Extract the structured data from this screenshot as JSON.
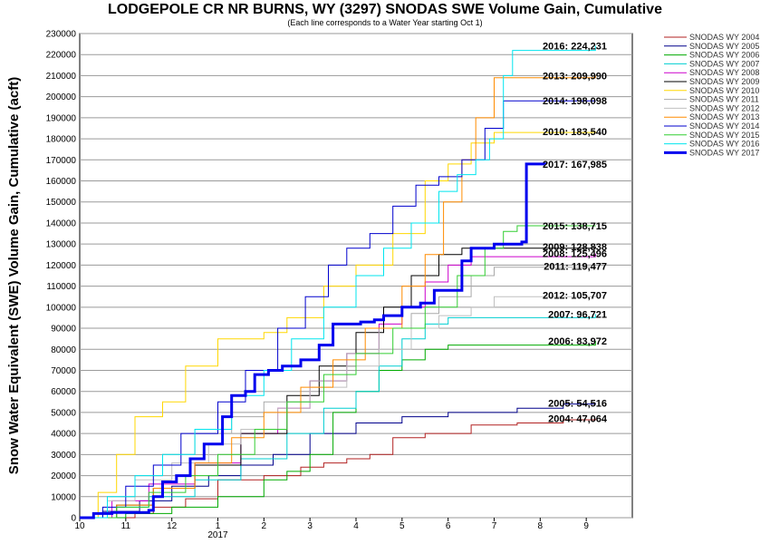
{
  "chart_data": {
    "type": "line",
    "title": "LODGEPOLE CR NR BURNS, WY (3297) SNODAS SWE Volume Gain, Cumulative",
    "subtitle": "(Each line corresponds to a Water Year starting Oct 1)",
    "ylabel": "Snow Water Equivalent (SWE) Volume Gain, Cumulative (acft)",
    "xlabel": "",
    "x_ticks": [
      "10",
      "11",
      "12",
      "1",
      "2",
      "3",
      "4",
      "5",
      "6",
      "7",
      "8",
      "9"
    ],
    "x_year_label": "2017",
    "xlim": [
      0,
      12
    ],
    "ylim": [
      0,
      230000
    ],
    "y_ticks": [
      0,
      10000,
      20000,
      30000,
      40000,
      50000,
      60000,
      70000,
      80000,
      90000,
      100000,
      110000,
      120000,
      130000,
      140000,
      150000,
      160000,
      170000,
      180000,
      190000,
      200000,
      210000,
      220000,
      230000
    ],
    "grid": true,
    "legend_position": "right",
    "series": [
      {
        "name": "SNODAS WY 2004",
        "color": "#b22222",
        "width": 1,
        "end_label": "2004: 47,064",
        "points": [
          [
            0,
            0
          ],
          [
            0.5,
            0
          ],
          [
            1.2,
            2000
          ],
          [
            1.6,
            5000
          ],
          [
            2.3,
            9000
          ],
          [
            3.0,
            18000
          ],
          [
            4.0,
            20000
          ],
          [
            4.8,
            24000
          ],
          [
            5.3,
            26000
          ],
          [
            5.8,
            28000
          ],
          [
            6.3,
            30000
          ],
          [
            6.8,
            38000
          ],
          [
            7.5,
            40000
          ],
          [
            8.5,
            44000
          ],
          [
            9.5,
            45000
          ],
          [
            10.5,
            46500
          ],
          [
            11.2,
            47064
          ]
        ]
      },
      {
        "name": "SNODAS WY 2005",
        "color": "#00008b",
        "width": 1,
        "end_label": "2005: 54,516",
        "points": [
          [
            0,
            0
          ],
          [
            0.5,
            3000
          ],
          [
            1.3,
            8000
          ],
          [
            2.0,
            15000
          ],
          [
            2.8,
            20000
          ],
          [
            3.5,
            25000
          ],
          [
            4.2,
            30000
          ],
          [
            5.0,
            40000
          ],
          [
            6.0,
            45000
          ],
          [
            7.0,
            48000
          ],
          [
            8.0,
            50000
          ],
          [
            9.5,
            52000
          ],
          [
            10.5,
            54000
          ],
          [
            11.2,
            54516
          ]
        ]
      },
      {
        "name": "SNODAS WY 2006",
        "color": "#00aa00",
        "width": 1,
        "end_label": "2006: 83,972",
        "points": [
          [
            0,
            0
          ],
          [
            1.0,
            2000
          ],
          [
            2.0,
            5000
          ],
          [
            3.0,
            10000
          ],
          [
            4.0,
            18000
          ],
          [
            4.5,
            22000
          ],
          [
            5.0,
            30000
          ],
          [
            5.5,
            50000
          ],
          [
            6.0,
            60000
          ],
          [
            6.5,
            70000
          ],
          [
            7.0,
            75000
          ],
          [
            7.5,
            80000
          ],
          [
            8.0,
            82000
          ],
          [
            11.2,
            83972
          ]
        ]
      },
      {
        "name": "SNODAS WY 2007",
        "color": "#00ced1",
        "width": 1,
        "end_label": "2007: 96,721",
        "points": [
          [
            0,
            0
          ],
          [
            0.8,
            5000
          ],
          [
            1.5,
            10000
          ],
          [
            2.5,
            18000
          ],
          [
            3.5,
            28000
          ],
          [
            4.5,
            40000
          ],
          [
            5.3,
            52000
          ],
          [
            6.0,
            60000
          ],
          [
            6.5,
            72000
          ],
          [
            7.0,
            85000
          ],
          [
            7.5,
            92000
          ],
          [
            8.0,
            95000
          ],
          [
            11.2,
            96721
          ]
        ]
      },
      {
        "name": "SNODAS WY 2008",
        "color": "#cc00cc",
        "width": 1,
        "end_label": "2008: 125,496",
        "points": [
          [
            0,
            0
          ],
          [
            0.7,
            8000
          ],
          [
            1.5,
            16000
          ],
          [
            2.5,
            26000
          ],
          [
            3.5,
            40000
          ],
          [
            4.3,
            52000
          ],
          [
            5.0,
            65000
          ],
          [
            5.8,
            78000
          ],
          [
            6.5,
            92000
          ],
          [
            7.0,
            100000
          ],
          [
            7.5,
            112000
          ],
          [
            8.0,
            120000
          ],
          [
            8.5,
            124000
          ],
          [
            11.2,
            125496
          ]
        ]
      },
      {
        "name": "SNODAS WY 2009",
        "color": "#000000",
        "width": 1,
        "end_label": "2009: 128,838",
        "points": [
          [
            0,
            0
          ],
          [
            0.8,
            6000
          ],
          [
            1.6,
            14000
          ],
          [
            2.5,
            25000
          ],
          [
            3.5,
            40000
          ],
          [
            4.5,
            58000
          ],
          [
            5.2,
            72000
          ],
          [
            6.0,
            88000
          ],
          [
            6.6,
            100000
          ],
          [
            7.2,
            115000
          ],
          [
            7.8,
            125000
          ],
          [
            8.3,
            128000
          ],
          [
            11.2,
            128838
          ]
        ]
      },
      {
        "name": "SNODAS WY 2010",
        "color": "#ffd700",
        "width": 1,
        "end_label": "2010: 183,540",
        "points": [
          [
            0,
            0
          ],
          [
            0.4,
            12000
          ],
          [
            0.8,
            30000
          ],
          [
            1.2,
            48000
          ],
          [
            1.8,
            55000
          ],
          [
            2.3,
            72000
          ],
          [
            3.0,
            85000
          ],
          [
            4.0,
            88000
          ],
          [
            4.5,
            95000
          ],
          [
            5.3,
            110000
          ],
          [
            6.0,
            120000
          ],
          [
            6.8,
            135000
          ],
          [
            7.5,
            160000
          ],
          [
            8.0,
            168000
          ],
          [
            8.5,
            178000
          ],
          [
            9.0,
            183000
          ],
          [
            11.2,
            183540
          ]
        ]
      },
      {
        "name": "SNODAS WY 2011",
        "color": "#a9a9a9",
        "width": 1,
        "end_label": "2011: 119,477",
        "points": [
          [
            0,
            0
          ],
          [
            0.6,
            10000
          ],
          [
            1.2,
            20000
          ],
          [
            1.8,
            30000
          ],
          [
            2.5,
            40000
          ],
          [
            3.3,
            48000
          ],
          [
            4.0,
            55000
          ],
          [
            5.0,
            65000
          ],
          [
            5.8,
            78000
          ],
          [
            6.5,
            90000
          ],
          [
            7.2,
            97000
          ],
          [
            7.8,
            105000
          ],
          [
            8.5,
            115000
          ],
          [
            9.0,
            119000
          ],
          [
            11.2,
            119477
          ]
        ]
      },
      {
        "name": "SNODAS WY 2012",
        "color": "#c0c0c0",
        "width": 1,
        "end_label": "2012: 105,707",
        "points": [
          [
            0,
            0
          ],
          [
            0.6,
            8000
          ],
          [
            1.2,
            18000
          ],
          [
            2.0,
            26000
          ],
          [
            2.8,
            35000
          ],
          [
            3.5,
            42000
          ],
          [
            4.3,
            52000
          ],
          [
            5.0,
            62000
          ],
          [
            5.8,
            72000
          ],
          [
            6.5,
            80000
          ],
          [
            7.2,
            90000
          ],
          [
            7.8,
            96000
          ],
          [
            8.5,
            100000
          ],
          [
            9.0,
            105000
          ],
          [
            11.2,
            105707
          ]
        ]
      },
      {
        "name": "SNODAS WY 2013",
        "color": "#ff8c00",
        "width": 1,
        "end_label": "2013: 209,990",
        "points": [
          [
            0,
            0
          ],
          [
            0.8,
            6000
          ],
          [
            1.6,
            14000
          ],
          [
            2.5,
            26000
          ],
          [
            3.3,
            38000
          ],
          [
            4.0,
            50000
          ],
          [
            4.8,
            62000
          ],
          [
            5.5,
            75000
          ],
          [
            6.2,
            90000
          ],
          [
            7.0,
            110000
          ],
          [
            7.5,
            125000
          ],
          [
            7.9,
            150000
          ],
          [
            8.3,
            170000
          ],
          [
            8.6,
            190000
          ],
          [
            9.0,
            209000
          ],
          [
            11.2,
            209990
          ]
        ]
      },
      {
        "name": "SNODAS WY 2014",
        "color": "#0000cd",
        "width": 1,
        "end_label": "2014: 198,098",
        "points": [
          [
            0,
            0
          ],
          [
            0.5,
            5000
          ],
          [
            1.0,
            15000
          ],
          [
            1.6,
            25000
          ],
          [
            2.2,
            40000
          ],
          [
            3.0,
            55000
          ],
          [
            3.6,
            70000
          ],
          [
            4.3,
            90000
          ],
          [
            4.9,
            105000
          ],
          [
            5.4,
            120000
          ],
          [
            5.8,
            128000
          ],
          [
            6.3,
            135000
          ],
          [
            6.8,
            148000
          ],
          [
            7.3,
            158000
          ],
          [
            7.8,
            162000
          ],
          [
            8.3,
            170000
          ],
          [
            8.8,
            185000
          ],
          [
            9.2,
            198000
          ],
          [
            11.2,
            198098
          ]
        ]
      },
      {
        "name": "SNODAS WY 2015",
        "color": "#32cd32",
        "width": 1,
        "end_label": "2015: 138,715",
        "points": [
          [
            0,
            0
          ],
          [
            0.8,
            5000
          ],
          [
            1.5,
            12000
          ],
          [
            2.3,
            20000
          ],
          [
            3.0,
            30000
          ],
          [
            3.8,
            42000
          ],
          [
            4.5,
            55000
          ],
          [
            5.3,
            68000
          ],
          [
            6.0,
            78000
          ],
          [
            6.8,
            90000
          ],
          [
            7.5,
            100000
          ],
          [
            8.2,
            115000
          ],
          [
            8.8,
            128000
          ],
          [
            9.2,
            136000
          ],
          [
            9.5,
            138700
          ],
          [
            11.2,
            138715
          ]
        ]
      },
      {
        "name": "SNODAS WY 2016",
        "color": "#00e5ee",
        "width": 1,
        "end_label": "2016: 224,231",
        "points": [
          [
            0,
            0
          ],
          [
            0.6,
            10000
          ],
          [
            1.2,
            20000
          ],
          [
            1.8,
            30000
          ],
          [
            2.5,
            42000
          ],
          [
            3.3,
            58000
          ],
          [
            4.0,
            70000
          ],
          [
            4.6,
            85000
          ],
          [
            5.3,
            100000
          ],
          [
            6.0,
            115000
          ],
          [
            6.6,
            128000
          ],
          [
            7.2,
            140000
          ],
          [
            7.8,
            155000
          ],
          [
            8.2,
            163000
          ],
          [
            8.6,
            170000
          ],
          [
            8.9,
            180000
          ],
          [
            9.2,
            210000
          ],
          [
            9.4,
            222000
          ],
          [
            11.2,
            224231
          ]
        ]
      },
      {
        "name": "SNODAS WY 2017",
        "color": "#0000ee",
        "width": 3,
        "end_label": "2017: 167,985",
        "points": [
          [
            0,
            0
          ],
          [
            0.3,
            2000
          ],
          [
            0.7,
            2500
          ],
          [
            1.5,
            3500
          ],
          [
            1.6,
            10000
          ],
          [
            1.8,
            17000
          ],
          [
            2.1,
            20000
          ],
          [
            2.4,
            28000
          ],
          [
            2.7,
            35000
          ],
          [
            3.1,
            48000
          ],
          [
            3.3,
            58000
          ],
          [
            3.6,
            60000
          ],
          [
            3.8,
            68000
          ],
          [
            4.1,
            70000
          ],
          [
            4.4,
            72000
          ],
          [
            4.8,
            75000
          ],
          [
            5.2,
            82000
          ],
          [
            5.5,
            92000
          ],
          [
            6.1,
            93000
          ],
          [
            6.4,
            94000
          ],
          [
            6.6,
            96000
          ],
          [
            7.0,
            100000
          ],
          [
            7.4,
            102000
          ],
          [
            7.7,
            108000
          ],
          [
            8.1,
            108000
          ],
          [
            8.3,
            122000
          ],
          [
            8.5,
            128000
          ],
          [
            9.0,
            130000
          ],
          [
            9.6,
            131000
          ],
          [
            9.7,
            168000
          ],
          [
            10.1,
            167985
          ]
        ]
      }
    ]
  }
}
